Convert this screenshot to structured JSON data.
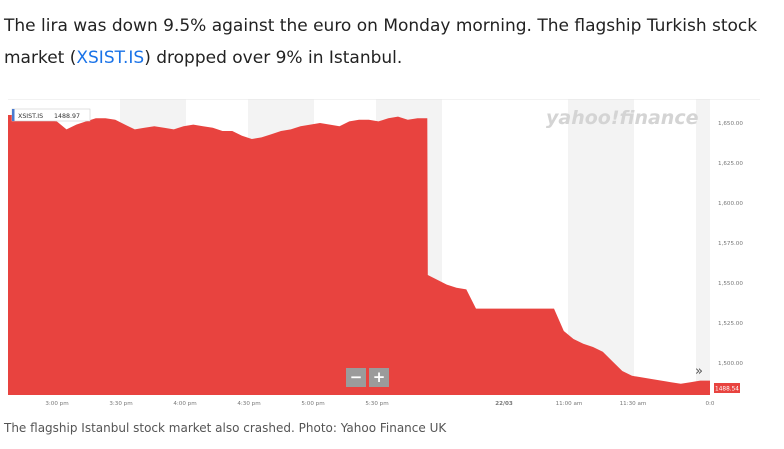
{
  "article": {
    "sentence_1": "The lira was down 9.5% against the euro on Monday morning. The flagship Turkish stock market (",
    "ticker_link": "XSIST.IS",
    "sentence_2": ") dropped over 9% in Istanbul."
  },
  "chart": {
    "brand": "yahoo!finance",
    "ticker_label": "XSIST.IS",
    "ticker_value": "1488.97",
    "current_value_badge": "1488.54",
    "zoom_out_label": "−",
    "zoom_in_label": "+",
    "forward_label": "»",
    "colors": {
      "fill": "#e8433f",
      "shade": "#f3f3f3",
      "badge": "#e8433f",
      "zoom": "#9b9b9b",
      "brand": "#d4d4d4"
    }
  },
  "chart_data": {
    "type": "area",
    "x_ticks": [
      "3:00 pm",
      "3:30 pm",
      "4:00 pm",
      "4:30 pm",
      "5:00 pm",
      "5:30 pm",
      "22/03",
      "11:00 am",
      "11:30 am",
      "0:0"
    ],
    "y_ticks": [
      "1,650.00",
      "1,625.00",
      "1,600.00",
      "1,575.00",
      "1,550.00",
      "1,525.00",
      "1,500.00"
    ],
    "ylim": [
      1480,
      1665
    ],
    "series": [
      {
        "values": [
          1655,
          1655,
          1654,
          1655,
          1652,
          1651,
          1646,
          1649,
          1651,
          1653,
          1653,
          1652,
          1649,
          1646,
          1647,
          1648,
          1647,
          1646,
          1648,
          1649,
          1648,
          1647,
          1645,
          1645,
          1642,
          1640,
          1641,
          1643,
          1645,
          1646,
          1648,
          1649,
          1650,
          1649,
          1648,
          1651,
          1652,
          1652,
          1651,
          1653,
          1654,
          1652,
          1653,
          1653,
          1555,
          1549,
          1547,
          1546,
          1534,
          1534,
          1534,
          1534,
          1534,
          1534,
          1534,
          1534,
          1534,
          1520,
          1515,
          1512,
          1510,
          1507,
          1501,
          1495,
          1492,
          1491,
          1490,
          1489,
          1488,
          1487,
          1488,
          1489,
          1489
        ]
      }
    ]
  },
  "caption": "The flagship Istanbul stock market also crashed. Photo: Yahoo Finance UK"
}
